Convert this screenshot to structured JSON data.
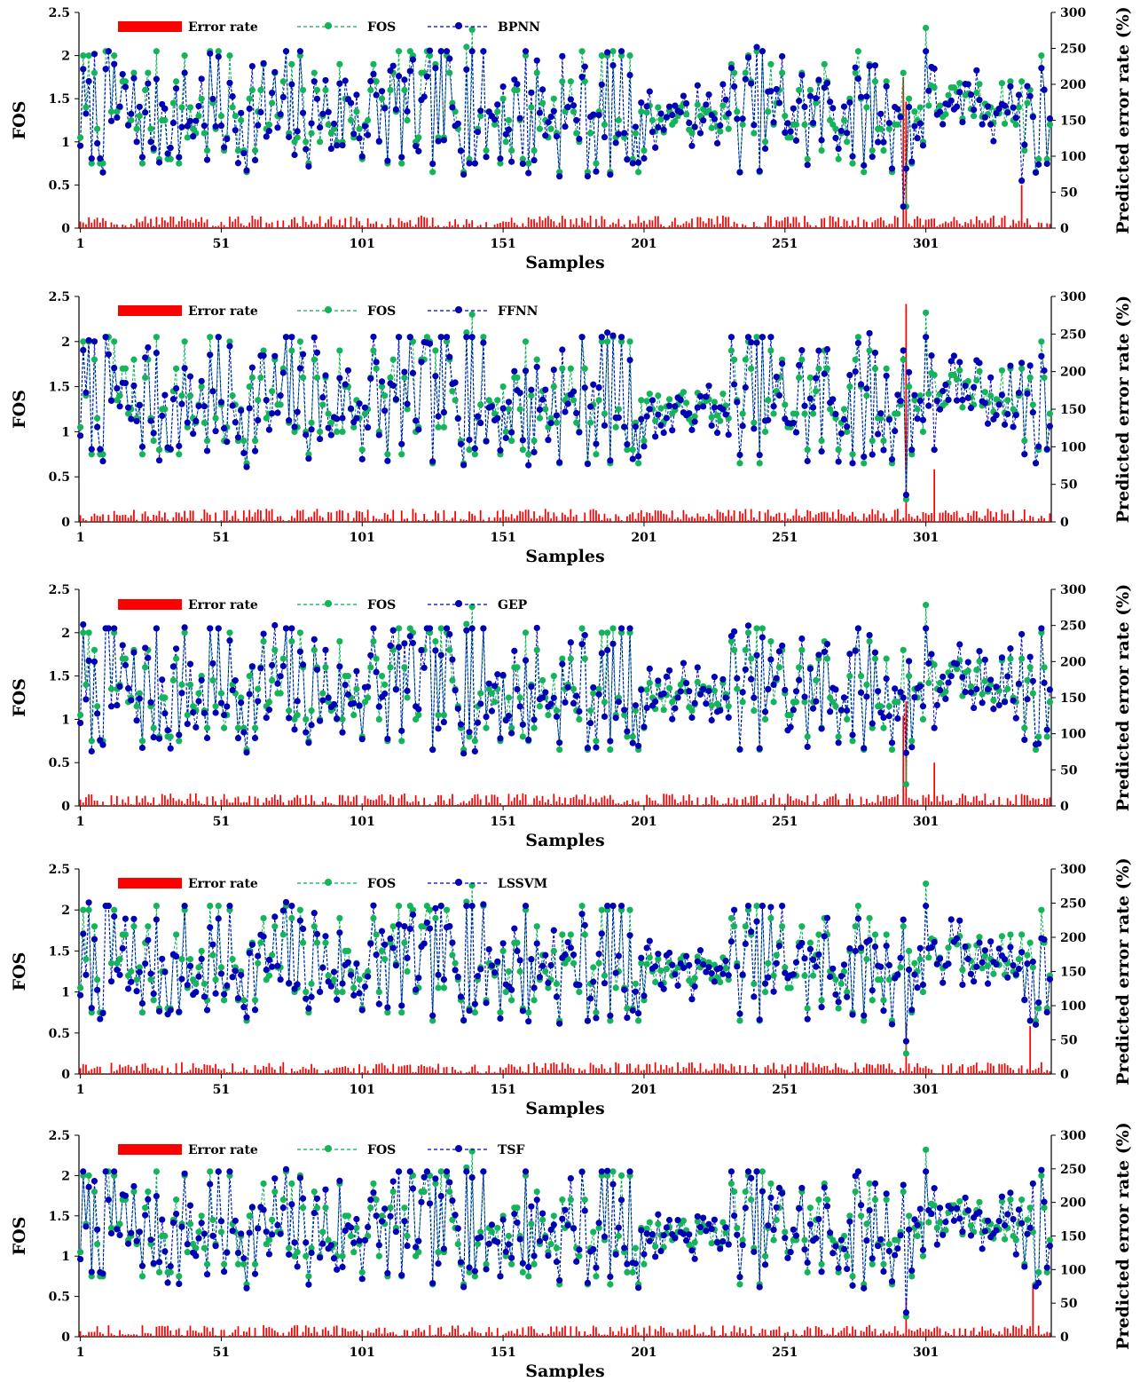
{
  "colors": {
    "error": "#ff0000",
    "fos": "#00b050",
    "pred": "#0000c8",
    "pred_dot": "#0000b4",
    "fos_dot": "#14b45a"
  },
  "chart_data": [
    {
      "type": "bar+line",
      "xlabel": "Samples",
      "ylabel_left": "FOS",
      "ylabel_right": "Predicted error rate (%)",
      "x_ticks": [
        "1",
        "51",
        "101",
        "151",
        "201",
        "251",
        "301"
      ],
      "y_left_ticks": [
        "0",
        "0.5",
        "1",
        "1.5",
        "2",
        "2.5"
      ],
      "y_right_ticks": [
        "0",
        "50",
        "100",
        "150",
        "200",
        "250",
        "300"
      ],
      "ylim_left": [
        0,
        2.5
      ],
      "ylim_right": [
        0,
        300
      ],
      "n_samples": 345,
      "legend_position": "top-left",
      "grid": false,
      "legend": [
        "Error rate",
        "FOS",
        "BPNN"
      ],
      "model": "BPNN",
      "seed": 11,
      "spikes": [
        {
          "x": 293,
          "err": 210,
          "pred": 0.25
        },
        {
          "x": 335,
          "err": 60,
          "pred": 0.55
        }
      ]
    },
    {
      "type": "bar+line",
      "xlabel": "Samples",
      "ylabel_left": "FOS",
      "ylabel_right": "Predicted error rate (%)",
      "x_ticks": [
        "1",
        "51",
        "101",
        "151",
        "201",
        "251",
        "301"
      ],
      "y_left_ticks": [
        "0",
        "0.5",
        "1",
        "1.5",
        "2",
        "2.5"
      ],
      "y_right_ticks": [
        "0",
        "50",
        "100",
        "150",
        "200",
        "250",
        "300"
      ],
      "ylim_left": [
        0,
        2.5
      ],
      "ylim_right": [
        0,
        300
      ],
      "n_samples": 345,
      "legend_position": "top-left",
      "grid": false,
      "legend": [
        "Error rate",
        "FOS",
        "FFNN"
      ],
      "model": "FFNN",
      "seed": 23,
      "spikes": [
        {
          "x": 294,
          "err": 290,
          "pred": 0.3
        },
        {
          "x": 304,
          "err": 70,
          "pred": 0.8
        }
      ]
    },
    {
      "type": "bar+line",
      "xlabel": "Samples",
      "ylabel_left": "FOS",
      "ylabel_right": "Predicted error rate (%)",
      "x_ticks": [
        "1",
        "51",
        "101",
        "151",
        "201",
        "251",
        "301"
      ],
      "y_left_ticks": [
        "0",
        "0.5",
        "1",
        "1.5",
        "2",
        "2.5"
      ],
      "y_right_ticks": [
        "0",
        "50",
        "100",
        "150",
        "200",
        "250",
        "300"
      ],
      "ylim_left": [
        0,
        2.5
      ],
      "ylim_right": [
        0,
        300
      ],
      "n_samples": 345,
      "legend_position": "top-left",
      "grid": false,
      "legend": [
        "Error rate",
        "FOS",
        "GEP"
      ],
      "model": "GEP",
      "seed": 37,
      "spikes": [
        {
          "x": 293,
          "err": 125,
          "pred": 1.25
        },
        {
          "x": 304,
          "err": 60,
          "pred": 0.9
        }
      ]
    },
    {
      "type": "bar+line",
      "xlabel": "Samples",
      "ylabel_left": "FOS",
      "ylabel_right": "Predicted error rate (%)",
      "x_ticks": [
        "1",
        "51",
        "101",
        "151",
        "201",
        "251",
        "301"
      ],
      "y_left_ticks": [
        "0",
        "0.5",
        "1",
        "1.5",
        "2",
        "2.5"
      ],
      "y_right_ticks": [
        "0",
        "50",
        "100",
        "150",
        "200",
        "250",
        "300"
      ],
      "ylim_left": [
        0,
        2.5
      ],
      "ylim_right": [
        0,
        300
      ],
      "n_samples": 345,
      "legend_position": "top-left",
      "grid": false,
      "legend": [
        "Error rate",
        "FOS",
        "LSSVM"
      ],
      "model": "LSSVM",
      "seed": 53,
      "spikes": [
        {
          "x": 294,
          "err": 75,
          "pred": 0.4
        },
        {
          "x": 338,
          "err": 70,
          "pred": 0.65
        }
      ]
    },
    {
      "type": "bar+line",
      "xlabel": "Samples",
      "ylabel_left": "FOS",
      "ylabel_right": "Predicted error rate (%)",
      "x_ticks": [
        "1",
        "51",
        "101",
        "151",
        "201",
        "251",
        "301"
      ],
      "y_left_ticks": [
        "0",
        "0.5",
        "1",
        "1.5",
        "2",
        "2.5"
      ],
      "y_right_ticks": [
        "0",
        "50",
        "100",
        "150",
        "200",
        "250",
        "300"
      ],
      "ylim_left": [
        0,
        2.5
      ],
      "ylim_right": [
        0,
        300
      ],
      "n_samples": 345,
      "legend_position": "top-left",
      "grid": false,
      "legend": [
        "Error rate",
        "FOS",
        "TSF"
      ],
      "model": "TSF",
      "seed": 71,
      "spikes": [
        {
          "x": 294,
          "err": 55,
          "pred": 0.3
        },
        {
          "x": 339,
          "err": 80,
          "pred": 1.9
        }
      ]
    }
  ]
}
